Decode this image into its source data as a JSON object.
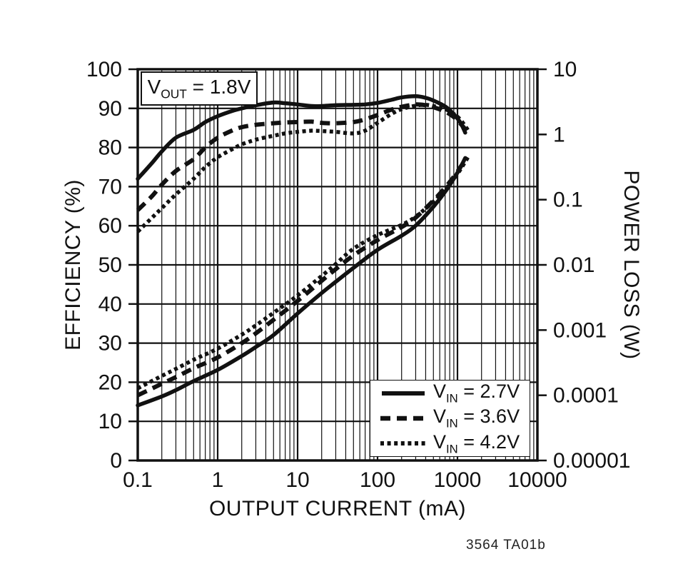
{
  "colors": {
    "ink": "#111111",
    "background": "#ffffff",
    "grid": "#111111"
  },
  "caption": "3564 TA01b",
  "chart_data": {
    "type": "line",
    "title": "",
    "annotation": {
      "prefix": "V",
      "sub": "OUT",
      "rest": " = 1.8V",
      "plain": "VOUT = 1.8V"
    },
    "caption": "3564 TA01b",
    "x_axis": {
      "label": "OUTPUT CURRENT (mA)",
      "scale": "log",
      "min": 0.1,
      "max": 10000,
      "ticks": [
        "0.1",
        "1",
        "10",
        "100",
        "1000",
        "10000"
      ],
      "minor_gridlines": true
    },
    "y_left": {
      "label": "EFFICIENCY (%)",
      "scale": "linear",
      "min": 0,
      "max": 100,
      "tick_step": 10,
      "ticks": [
        "100",
        "90",
        "80",
        "70",
        "60",
        "50",
        "40",
        "30",
        "20",
        "10",
        "0"
      ]
    },
    "y_right": {
      "label": "POWER LOSS (W)",
      "scale": "log",
      "min": 1e-05,
      "max": 10,
      "ticks": [
        "10",
        "1",
        "0.1",
        "0.01",
        "0.001",
        "0.0001",
        "0.00001"
      ]
    },
    "legend": [
      {
        "prefix": "V",
        "sub": "IN",
        "rest": " = 2.7V",
        "plain": "VIN = 2.7V",
        "line_style": "solid"
      },
      {
        "prefix": "V",
        "sub": "IN",
        "rest": " = 3.6V",
        "plain": "VIN = 3.6V",
        "line_style": "dashed"
      },
      {
        "prefix": "V",
        "sub": "IN",
        "rest": " = 4.2V",
        "plain": "VIN = 4.2V",
        "line_style": "dotted"
      }
    ],
    "legend_position": "inside bottom-right",
    "grid": true,
    "series": [
      {
        "id": "efficiency-vin-2p7",
        "name": "Efficiency VIN = 2.7V",
        "axis": "left",
        "line_style": "solid",
        "points": [
          [
            0.1,
            72
          ],
          [
            0.15,
            76
          ],
          [
            0.2,
            79
          ],
          [
            0.3,
            82.5
          ],
          [
            0.5,
            84.5
          ],
          [
            0.7,
            86.5
          ],
          [
            1,
            88
          ],
          [
            1.5,
            89.3
          ],
          [
            2,
            90
          ],
          [
            3,
            90.8
          ],
          [
            5,
            91.5
          ],
          [
            7,
            91.3
          ],
          [
            10,
            91
          ],
          [
            15,
            90.6
          ],
          [
            20,
            90.6
          ],
          [
            30,
            90.8
          ],
          [
            50,
            90.9
          ],
          [
            70,
            91
          ],
          [
            100,
            91.4
          ],
          [
            150,
            92.2
          ],
          [
            200,
            92.8
          ],
          [
            300,
            93.1
          ],
          [
            400,
            92.7
          ],
          [
            500,
            92
          ],
          [
            700,
            90.5
          ],
          [
            900,
            88.5
          ],
          [
            1100,
            86.2
          ],
          [
            1250,
            83.8
          ]
        ]
      },
      {
        "id": "efficiency-vin-3p6",
        "name": "Efficiency VIN = 3.6V",
        "axis": "left",
        "line_style": "dashed",
        "points": [
          [
            0.1,
            64
          ],
          [
            0.15,
            67.5
          ],
          [
            0.2,
            70.5
          ],
          [
            0.3,
            74
          ],
          [
            0.5,
            77
          ],
          [
            0.7,
            80
          ],
          [
            1,
            82.5
          ],
          [
            1.5,
            84.3
          ],
          [
            2,
            85.2
          ],
          [
            3,
            85.8
          ],
          [
            5,
            86.2
          ],
          [
            7,
            86.4
          ],
          [
            10,
            86.5
          ],
          [
            15,
            86.6
          ],
          [
            20,
            86.3
          ],
          [
            30,
            86.2
          ],
          [
            50,
            86.5
          ],
          [
            70,
            87.2
          ],
          [
            100,
            88.3
          ],
          [
            150,
            89.7
          ],
          [
            200,
            90.4
          ],
          [
            300,
            91
          ],
          [
            400,
            90.8
          ],
          [
            500,
            90.3
          ],
          [
            700,
            89.2
          ],
          [
            900,
            87.8
          ],
          [
            1100,
            86
          ],
          [
            1300,
            84.3
          ]
        ]
      },
      {
        "id": "efficiency-vin-4p2",
        "name": "Efficiency VIN = 4.2V",
        "axis": "left",
        "line_style": "dotted",
        "points": [
          [
            0.1,
            58.5
          ],
          [
            0.15,
            62
          ],
          [
            0.2,
            64.5
          ],
          [
            0.3,
            68
          ],
          [
            0.5,
            72
          ],
          [
            0.7,
            75
          ],
          [
            1,
            77.5
          ],
          [
            1.5,
            79.5
          ],
          [
            2,
            80.8
          ],
          [
            3,
            82
          ],
          [
            5,
            83
          ],
          [
            7,
            83.6
          ],
          [
            10,
            84
          ],
          [
            15,
            84.3
          ],
          [
            20,
            84.2
          ],
          [
            30,
            84
          ],
          [
            50,
            83.6
          ],
          [
            70,
            84.3
          ],
          [
            100,
            86.3
          ],
          [
            150,
            88.6
          ],
          [
            200,
            89.8
          ],
          [
            300,
            90.7
          ],
          [
            400,
            90.9
          ],
          [
            500,
            90.6
          ],
          [
            700,
            89.8
          ],
          [
            900,
            88.6
          ],
          [
            1100,
            87
          ],
          [
            1400,
            84
          ]
        ]
      },
      {
        "id": "power-loss-vin-2p7",
        "name": "Power Loss VIN = 2.7V",
        "axis": "right",
        "line_style": "solid",
        "points": [
          [
            0.1,
            7e-05
          ],
          [
            0.2,
            9.6e-05
          ],
          [
            0.3,
            0.00012
          ],
          [
            0.5,
            0.000165
          ],
          [
            1,
            0.000245
          ],
          [
            2,
            0.0004
          ],
          [
            3,
            0.00055
          ],
          [
            5,
            0.00084
          ],
          [
            10,
            0.0018
          ],
          [
            20,
            0.0037
          ],
          [
            30,
            0.0055
          ],
          [
            50,
            0.009
          ],
          [
            100,
            0.017
          ],
          [
            200,
            0.028
          ],
          [
            300,
            0.04
          ],
          [
            500,
            0.078
          ],
          [
            700,
            0.132
          ],
          [
            900,
            0.21
          ],
          [
            1100,
            0.32
          ],
          [
            1250,
            0.435
          ]
        ]
      },
      {
        "id": "power-loss-vin-3p6",
        "name": "Power Loss VIN = 3.6V",
        "axis": "right",
        "line_style": "dashed",
        "points": [
          [
            0.1,
            0.0001
          ],
          [
            0.2,
            0.00015
          ],
          [
            0.3,
            0.00019
          ],
          [
            0.5,
            0.00026
          ],
          [
            1,
            0.00038
          ],
          [
            2,
            0.00063
          ],
          [
            3,
            0.00089
          ],
          [
            5,
            0.00144
          ],
          [
            10,
            0.0028
          ],
          [
            20,
            0.0057
          ],
          [
            30,
            0.0086
          ],
          [
            50,
            0.014
          ],
          [
            100,
            0.024
          ],
          [
            200,
            0.038
          ],
          [
            300,
            0.053
          ],
          [
            500,
            0.097
          ],
          [
            700,
            0.153
          ],
          [
            900,
            0.225
          ],
          [
            1100,
            0.322
          ],
          [
            1300,
            0.436
          ]
        ]
      },
      {
        "id": "power-loss-vin-4p2",
        "name": "Power Loss VIN = 4.2V",
        "axis": "right",
        "line_style": "dotted",
        "points": [
          [
            0.1,
            0.000128
          ],
          [
            0.2,
            0.000198
          ],
          [
            0.3,
            0.000254
          ],
          [
            0.5,
            0.00035
          ],
          [
            1,
            0.00052
          ],
          [
            2,
            0.00085
          ],
          [
            3,
            0.00118
          ],
          [
            5,
            0.00184
          ],
          [
            10,
            0.0034
          ],
          [
            20,
            0.00675
          ],
          [
            30,
            0.0103
          ],
          [
            50,
            0.0177
          ],
          [
            100,
            0.0286
          ],
          [
            200,
            0.041
          ],
          [
            300,
            0.055
          ],
          [
            500,
            0.093
          ],
          [
            700,
            0.143
          ],
          [
            900,
            0.207
          ],
          [
            1100,
            0.296
          ],
          [
            1400,
            0.48
          ]
        ]
      }
    ]
  }
}
